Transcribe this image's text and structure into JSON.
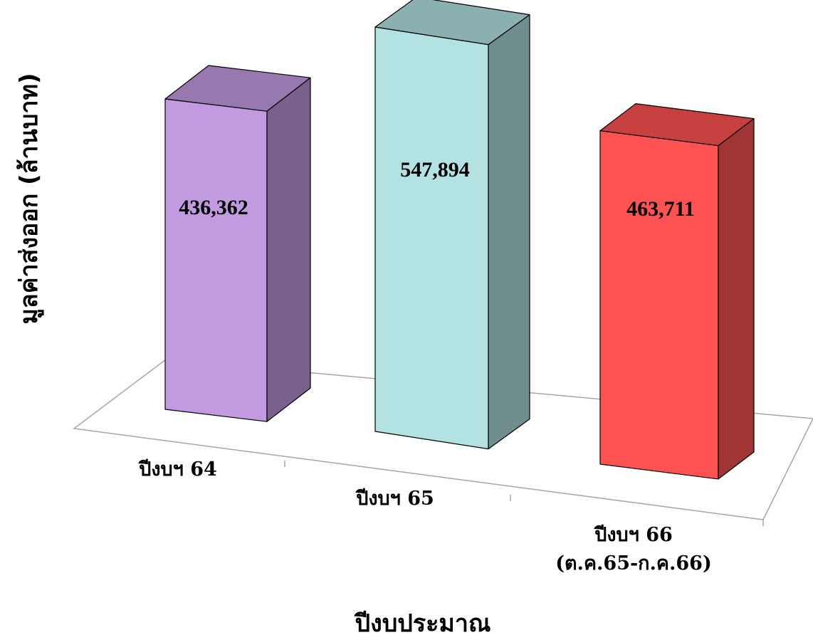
{
  "chart_data": {
    "type": "bar",
    "style": "3d-column",
    "categories": [
      [
        "ปีงบฯ 64"
      ],
      [
        "ปีงบฯ 65"
      ],
      [
        "ปีงบฯ 66",
        "(ต.ค.65-ก.ค.66)"
      ]
    ],
    "values": [
      436362,
      547894,
      463711
    ],
    "value_labels": [
      "436,362",
      "547,894",
      "463,711"
    ],
    "colors": [
      "#c29ae0",
      "#b2e2e2",
      "#ff5252"
    ],
    "xlabel": "ปีงบประมาณ",
    "ylabel": "มูลค่าส่งออก (ล้านบาท)",
    "grid": false,
    "legend": "none"
  }
}
